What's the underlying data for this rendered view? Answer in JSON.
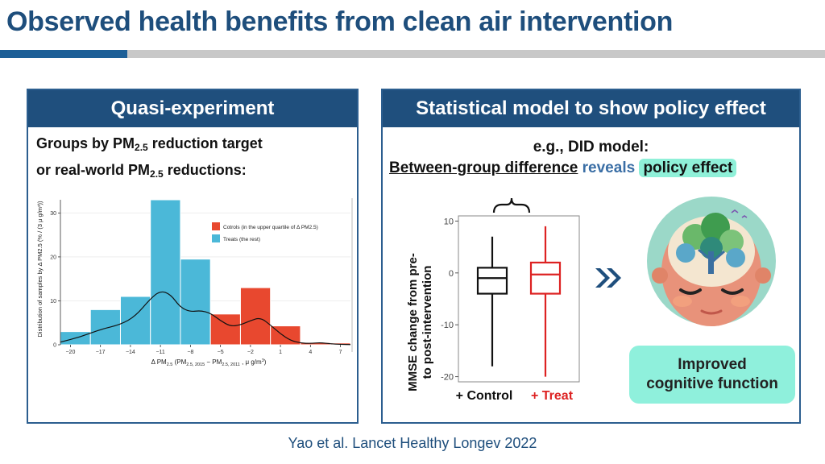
{
  "title": "Observed health benefits from clean air intervention",
  "left_panel": {
    "header": "Quasi-experiment",
    "line1_a": "Groups by PM",
    "line1_sub": "2.5",
    "line1_b": " reduction target",
    "line2_a": "or real-world PM",
    "line2_sub": "2.5",
    "line2_b": " reductions:"
  },
  "right_panel": {
    "header": "Statistical model to show policy effect",
    "line1": "e.g., DID model:",
    "diff_text": "Between-group difference",
    "reveals_text": "reveals",
    "policy_text": "policy effect",
    "improved_line1": "Improved",
    "improved_line2": "cognitive function"
  },
  "citation": "Yao et al. Lancet Healthy Longev 2022",
  "colors": {
    "control": "#e8482f",
    "treat": "#4bb8d8",
    "accent": "#1f4f7d",
    "mint": "#8ff0dc"
  },
  "chart_data": [
    {
      "type": "bar",
      "title": "",
      "xlabel_main": "Δ PM",
      "xlabel_sub": "2.5",
      "xlabel_rest": " (PM",
      "xlabel_sub2": "2.5, 2015",
      "xlabel_mid": " − PM",
      "xlabel_sub3": "2.5, 2011",
      "xlabel_end": " , μ g/m",
      "xlabel_sup": "3",
      "xlabel_close": ")",
      "ylabel": "Distribution of samples by Δ PM2.5 (% / (3 μ g/m³))",
      "x_ticks": [
        "−20",
        "−17",
        "−14",
        "−11",
        "−8",
        "−5",
        "−2",
        "1",
        "4",
        "7"
      ],
      "y_ticks": [
        "0",
        "10",
        "20",
        "30"
      ],
      "xlim": [
        -21,
        8
      ],
      "ylim": [
        0,
        33
      ],
      "legend": {
        "placement": "top-right",
        "items": [
          {
            "label": "Cotrols (in the upper quartile of Δ PM2.5)",
            "color": "#e8482f"
          },
          {
            "label": "Treats (the rest)",
            "color": "#4bb8d8"
          }
        ]
      },
      "bins": [
        {
          "x0": -21,
          "x1": -18,
          "value": 3,
          "group": "treat"
        },
        {
          "x0": -18,
          "x1": -15,
          "value": 8,
          "group": "treat"
        },
        {
          "x0": -15,
          "x1": -12,
          "value": 11,
          "group": "treat"
        },
        {
          "x0": -12,
          "x1": -9,
          "value": 33,
          "group": "treat"
        },
        {
          "x0": -9,
          "x1": -6,
          "value": 19.5,
          "group": "treat"
        },
        {
          "x0": -6,
          "x1": -3,
          "value": 7,
          "group": "control"
        },
        {
          "x0": -3,
          "x1": 0,
          "value": 13,
          "group": "control"
        },
        {
          "x0": 0,
          "x1": 3,
          "value": 4.3,
          "group": "control"
        },
        {
          "x0": 3,
          "x1": 6,
          "value": 0.5,
          "group": "control"
        },
        {
          "x0": 6,
          "x1": 8,
          "value": 0.4,
          "group": "control"
        }
      ],
      "density_curve": [
        [
          -21,
          0.6
        ],
        [
          -19,
          1.8
        ],
        [
          -17,
          3.5
        ],
        [
          -15,
          4.6
        ],
        [
          -13.5,
          6.5
        ],
        [
          -12,
          10.5
        ],
        [
          -11,
          12.3
        ],
        [
          -10,
          11.5
        ],
        [
          -9,
          8.5
        ],
        [
          -8,
          7.5
        ],
        [
          -7,
          7.8
        ],
        [
          -6,
          7.2
        ],
        [
          -5,
          5.5
        ],
        [
          -4,
          4.2
        ],
        [
          -3,
          4.5
        ],
        [
          -2,
          5.5
        ],
        [
          -1,
          6.2
        ],
        [
          0,
          4.5
        ],
        [
          1,
          2.5
        ],
        [
          2,
          1
        ],
        [
          3,
          0.4
        ],
        [
          4,
          0.3
        ],
        [
          5,
          0.5
        ],
        [
          6,
          0.2
        ],
        [
          7,
          0.1
        ],
        [
          8,
          0.05
        ]
      ]
    },
    {
      "type": "box",
      "ylabel": "MMSE change from pre-to post-intervention",
      "y_ticks": [
        "10",
        "0",
        "-10",
        "-20"
      ],
      "ylim": [
        -21,
        11
      ],
      "series": [
        {
          "name": "+ Control",
          "min": -18,
          "q1": -4,
          "median": -1,
          "q3": 1,
          "max": 7,
          "color": "#111111"
        },
        {
          "name": "+ Treat",
          "min": -20,
          "q1": -4,
          "median": -0.3,
          "q3": 2,
          "max": 9,
          "color": "#dd2222"
        }
      ]
    }
  ]
}
